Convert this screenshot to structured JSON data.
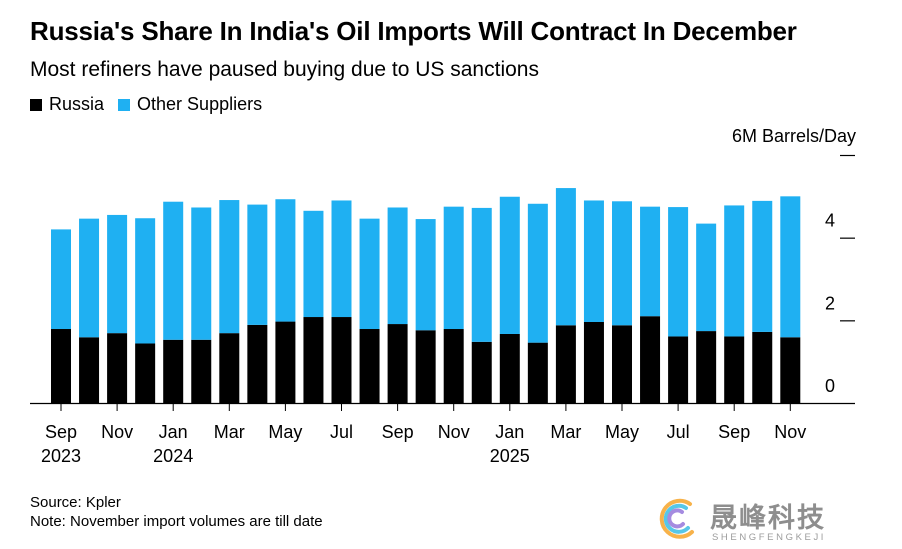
{
  "header": {
    "title": "Russia's Share In India's Oil Imports Will Contract In December",
    "subtitle": "Most refiners have paused buying due to US sanctions"
  },
  "legend": [
    {
      "label": "Russia",
      "color": "#000000"
    },
    {
      "label": "Other Suppliers",
      "color": "#1fb0f2"
    }
  ],
  "footer": {
    "source": "Source: Kpler",
    "note": "Note: November import volumes are till date"
  },
  "watermark": {
    "text": "晟峰科技",
    "subtext": "SHENGFENGKEJI"
  },
  "chart_data": {
    "type": "bar",
    "stacked": true,
    "title": "Russia's Share In India's Oil Imports Will Contract In December",
    "subtitle": "Most refiners have paused buying due to US sanctions",
    "unit_label": "6M Barrels/Day",
    "ylim": [
      0,
      6
    ],
    "yticks": [
      0,
      2,
      4,
      6
    ],
    "ytick_labels": [
      "0",
      "2",
      "4",
      ""
    ],
    "axis_side": "right",
    "categories": [
      "Sep 2023",
      "Oct 2023",
      "Nov 2023",
      "Dec 2023",
      "Jan 2024",
      "Feb 2024",
      "Mar 2024",
      "Apr 2024",
      "May 2024",
      "Jun 2024",
      "Jul 2024",
      "Aug 2024",
      "Sep 2024",
      "Oct 2024",
      "Nov 2024",
      "Dec 2024",
      "Jan 2025",
      "Feb 2025",
      "Mar 2025",
      "Apr 2025",
      "May 2025",
      "Jun 2025",
      "Jul 2025",
      "Aug 2025",
      "Sep 2025",
      "Oct 2025",
      "Nov 2025"
    ],
    "tick_labels": [
      {
        "index": 0,
        "label": "Sep",
        "year": "2023"
      },
      {
        "index": 2,
        "label": "Nov",
        "year": ""
      },
      {
        "index": 4,
        "label": "Jan",
        "year": "2024"
      },
      {
        "index": 6,
        "label": "Mar",
        "year": ""
      },
      {
        "index": 8,
        "label": "May",
        "year": ""
      },
      {
        "index": 10,
        "label": "Jul",
        "year": ""
      },
      {
        "index": 12,
        "label": "Sep",
        "year": ""
      },
      {
        "index": 14,
        "label": "Nov",
        "year": ""
      },
      {
        "index": 16,
        "label": "Jan",
        "year": "2025"
      },
      {
        "index": 18,
        "label": "Mar",
        "year": ""
      },
      {
        "index": 20,
        "label": "May",
        "year": ""
      },
      {
        "index": 22,
        "label": "Jul",
        "year": ""
      },
      {
        "index": 24,
        "label": "Sep",
        "year": ""
      },
      {
        "index": 26,
        "label": "Nov",
        "year": ""
      }
    ],
    "series": [
      {
        "name": "Russia",
        "color": "#000000",
        "values": [
          1.79,
          1.59,
          1.69,
          1.44,
          1.53,
          1.53,
          1.69,
          1.89,
          1.97,
          2.08,
          2.08,
          1.79,
          1.91,
          1.76,
          1.79,
          1.48,
          1.67,
          1.46,
          1.88,
          1.96,
          1.88,
          2.1,
          1.61,
          1.74,
          1.61,
          1.72,
          1.59
        ]
      },
      {
        "name": "Other Suppliers",
        "color": "#1fb0f2",
        "values": [
          2.41,
          2.87,
          2.86,
          3.03,
          3.34,
          3.2,
          3.22,
          2.91,
          2.96,
          2.57,
          2.82,
          2.67,
          2.82,
          2.69,
          2.96,
          3.24,
          3.32,
          3.36,
          3.32,
          2.94,
          3.0,
          2.65,
          3.13,
          2.6,
          3.17,
          3.17,
          3.41
        ]
      }
    ]
  }
}
